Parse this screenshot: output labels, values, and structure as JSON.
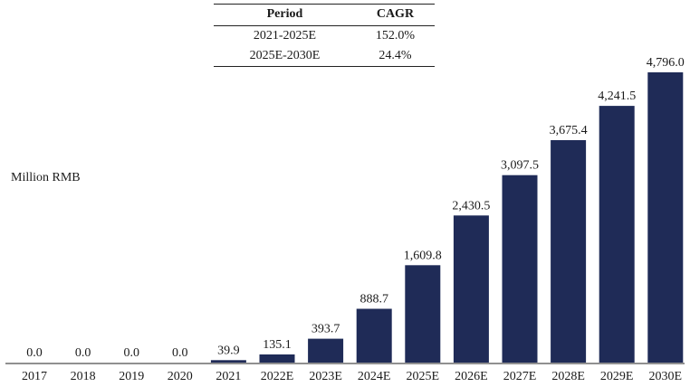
{
  "table": {
    "headers": [
      "Period",
      "CAGR"
    ],
    "rows": [
      [
        "2021-2025E",
        "152.0%"
      ],
      [
        "2025E-2030E",
        "24.4%"
      ]
    ]
  },
  "chart_data": {
    "type": "bar",
    "ylabel": "Million RMB",
    "categories": [
      "2017",
      "2018",
      "2019",
      "2020",
      "2021",
      "2022E",
      "2023E",
      "2024E",
      "2025E",
      "2026E",
      "2027E",
      "2028E",
      "2029E",
      "2030E"
    ],
    "values": [
      0.0,
      0.0,
      0.0,
      0.0,
      39.9,
      135.1,
      393.7,
      888.7,
      1609.8,
      2430.5,
      3097.5,
      3675.4,
      4241.5,
      4796.0
    ],
    "value_labels": [
      "0.0",
      "0.0",
      "0.0",
      "0.0",
      "39.9",
      "135.1",
      "393.7",
      "888.7",
      "1,609.8",
      "2,430.5",
      "3,097.5",
      "3,675.4",
      "4,241.5",
      "4,796.0"
    ],
    "bar_color": "#1f2b57",
    "ylim": [
      0,
      4796.0
    ],
    "grid": false,
    "legend": "none"
  }
}
